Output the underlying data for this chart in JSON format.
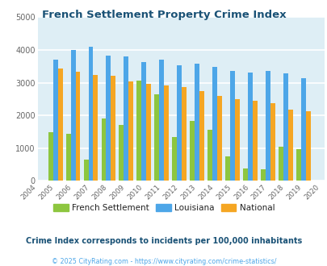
{
  "title": "French Settlement Property Crime Index",
  "years": [
    2004,
    2005,
    2006,
    2007,
    2008,
    2009,
    2010,
    2011,
    2012,
    2013,
    2014,
    2015,
    2016,
    2017,
    2018,
    2019,
    2020
  ],
  "french_settlement": [
    0,
    1480,
    1440,
    650,
    1900,
    1700,
    3070,
    2650,
    1340,
    1840,
    1570,
    750,
    370,
    360,
    1050,
    960,
    0
  ],
  "louisiana": [
    0,
    3700,
    4000,
    4100,
    3840,
    3810,
    3640,
    3710,
    3540,
    3580,
    3490,
    3350,
    3320,
    3370,
    3280,
    3140,
    0
  ],
  "national": [
    0,
    3430,
    3330,
    3240,
    3210,
    3030,
    2960,
    2920,
    2880,
    2740,
    2600,
    2490,
    2460,
    2370,
    2190,
    2130,
    0
  ],
  "color_french": "#8dc63f",
  "color_louisiana": "#4da6e8",
  "color_national": "#f5a623",
  "plot_bg": "#deeef5",
  "title_color": "#1a5276",
  "legend_label_color": "#222222",
  "subtitle": "Crime Index corresponds to incidents per 100,000 inhabitants",
  "footer": "© 2025 CityRating.com - https://www.cityrating.com/crime-statistics/",
  "subtitle_color": "#1a5276",
  "footer_color": "#4da6e8",
  "ylim": [
    0,
    5000
  ],
  "yticks": [
    0,
    1000,
    2000,
    3000,
    4000,
    5000
  ]
}
